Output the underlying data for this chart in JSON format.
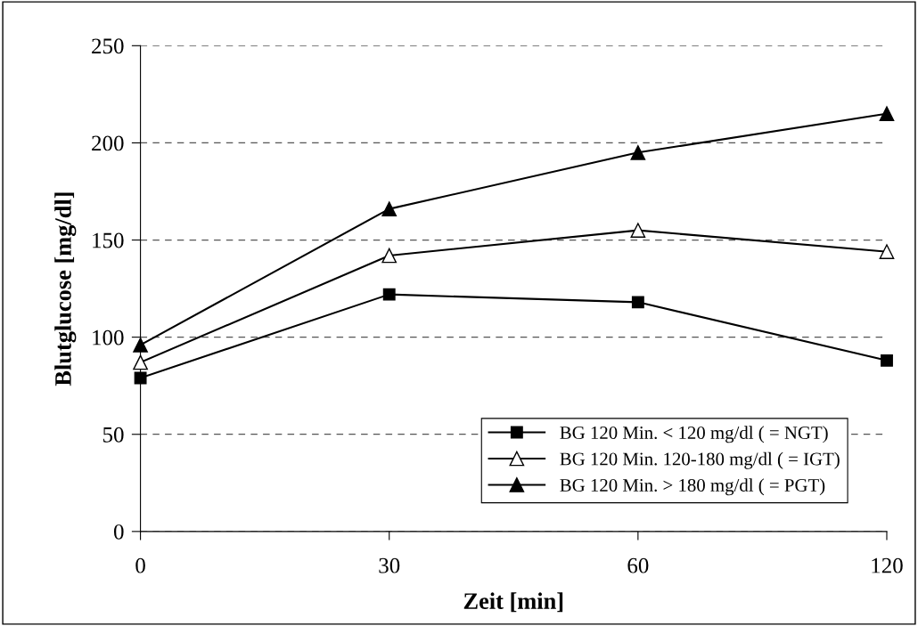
{
  "chart_data": {
    "type": "line",
    "xlabel": "Zeit [min]",
    "ylabel": "Blutglucose [mg/dl]",
    "categories": [
      "0",
      "30",
      "60",
      "120"
    ],
    "series": [
      {
        "name": "BG 120 Min. < 120 mg/dl ( = NGT)",
        "color": "#000000",
        "marker": "square",
        "values": [
          79,
          122,
          118,
          88
        ]
      },
      {
        "name": "BG 120 Min. 120-180 mg/dl ( = IGT)",
        "color": "#000000",
        "marker": "triangle",
        "values": [
          87,
          142,
          155,
          144
        ]
      },
      {
        "name": "BG 120 Min. > 180 mg/dl ( = PGT)",
        "color": "#000000",
        "marker": "triangle",
        "values": [
          96,
          166,
          195,
          215
        ]
      }
    ],
    "ylim": [
      0,
      250
    ],
    "yticks": [
      0,
      50,
      100,
      150,
      200,
      250
    ],
    "grid": "y",
    "legend": "bottom right",
    "line_style": "solid"
  }
}
